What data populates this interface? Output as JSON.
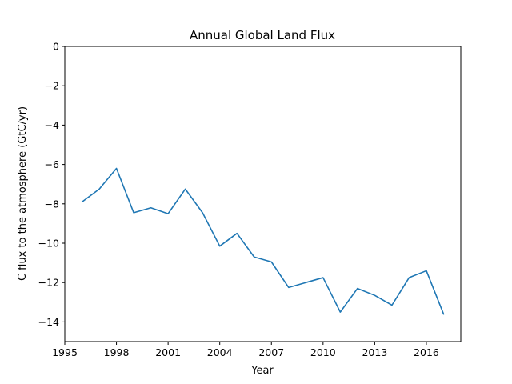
{
  "chart_data": {
    "type": "line",
    "title": "Annual Global Land Flux",
    "xlabel": "Year",
    "ylabel": "C flux to the atmosphere (GtC/yr)",
    "xlim": [
      1995,
      2018
    ],
    "ylim": [
      -15,
      0
    ],
    "xticks": [
      1995,
      1998,
      2001,
      2004,
      2007,
      2010,
      2013,
      2016
    ],
    "xtick_labels": [
      "1995",
      "1998",
      "2001",
      "2004",
      "2007",
      "2010",
      "2013",
      "2016"
    ],
    "yticks": [
      0,
      -2,
      -4,
      -6,
      -8,
      -10,
      -12,
      -14
    ],
    "ytick_labels": [
      "0",
      "−2",
      "−4",
      "−6",
      "−8",
      "−10",
      "−12",
      "−14"
    ],
    "grid": false,
    "series": [
      {
        "color": "#1f77b4",
        "x": [
          1996,
          1997,
          1998,
          1999,
          2000,
          2001,
          2002,
          2003,
          2004,
          2005,
          2006,
          2007,
          2008,
          2009,
          2010,
          2011,
          2012,
          2013,
          2014,
          2015,
          2016,
          2017
        ],
        "values": [
          -7.9,
          -7.25,
          -6.2,
          -8.45,
          -8.2,
          -8.5,
          -7.25,
          -8.45,
          -10.15,
          -9.5,
          -10.7,
          -10.95,
          -12.25,
          -12.0,
          -11.75,
          -13.5,
          -12.3,
          -12.65,
          -13.15,
          -11.75,
          -11.4,
          -13.6
        ]
      }
    ]
  }
}
